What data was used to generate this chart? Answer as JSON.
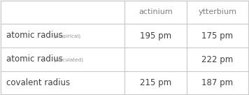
{
  "col_headers": [
    "",
    "actinium",
    "ytterbium"
  ],
  "rows": [
    {
      "label_main": "atomic radius",
      "label_sub": "(empirical)",
      "values": [
        "195 pm",
        "175 pm"
      ]
    },
    {
      "label_main": "atomic radius",
      "label_sub": "(calculated)",
      "values": [
        "",
        "222 pm"
      ]
    },
    {
      "label_main": "covalent radius",
      "label_sub": "",
      "values": [
        "215 pm",
        "187 pm"
      ]
    }
  ],
  "bg_color": "#f7f7f7",
  "header_text_color": "#808080",
  "cell_text_color": "#404040",
  "row_label_main_color": "#404040",
  "row_label_sub_color": "#909090",
  "grid_color": "#c8c8c8",
  "figsize": [
    3.56,
    1.36
  ],
  "dpi": 100
}
